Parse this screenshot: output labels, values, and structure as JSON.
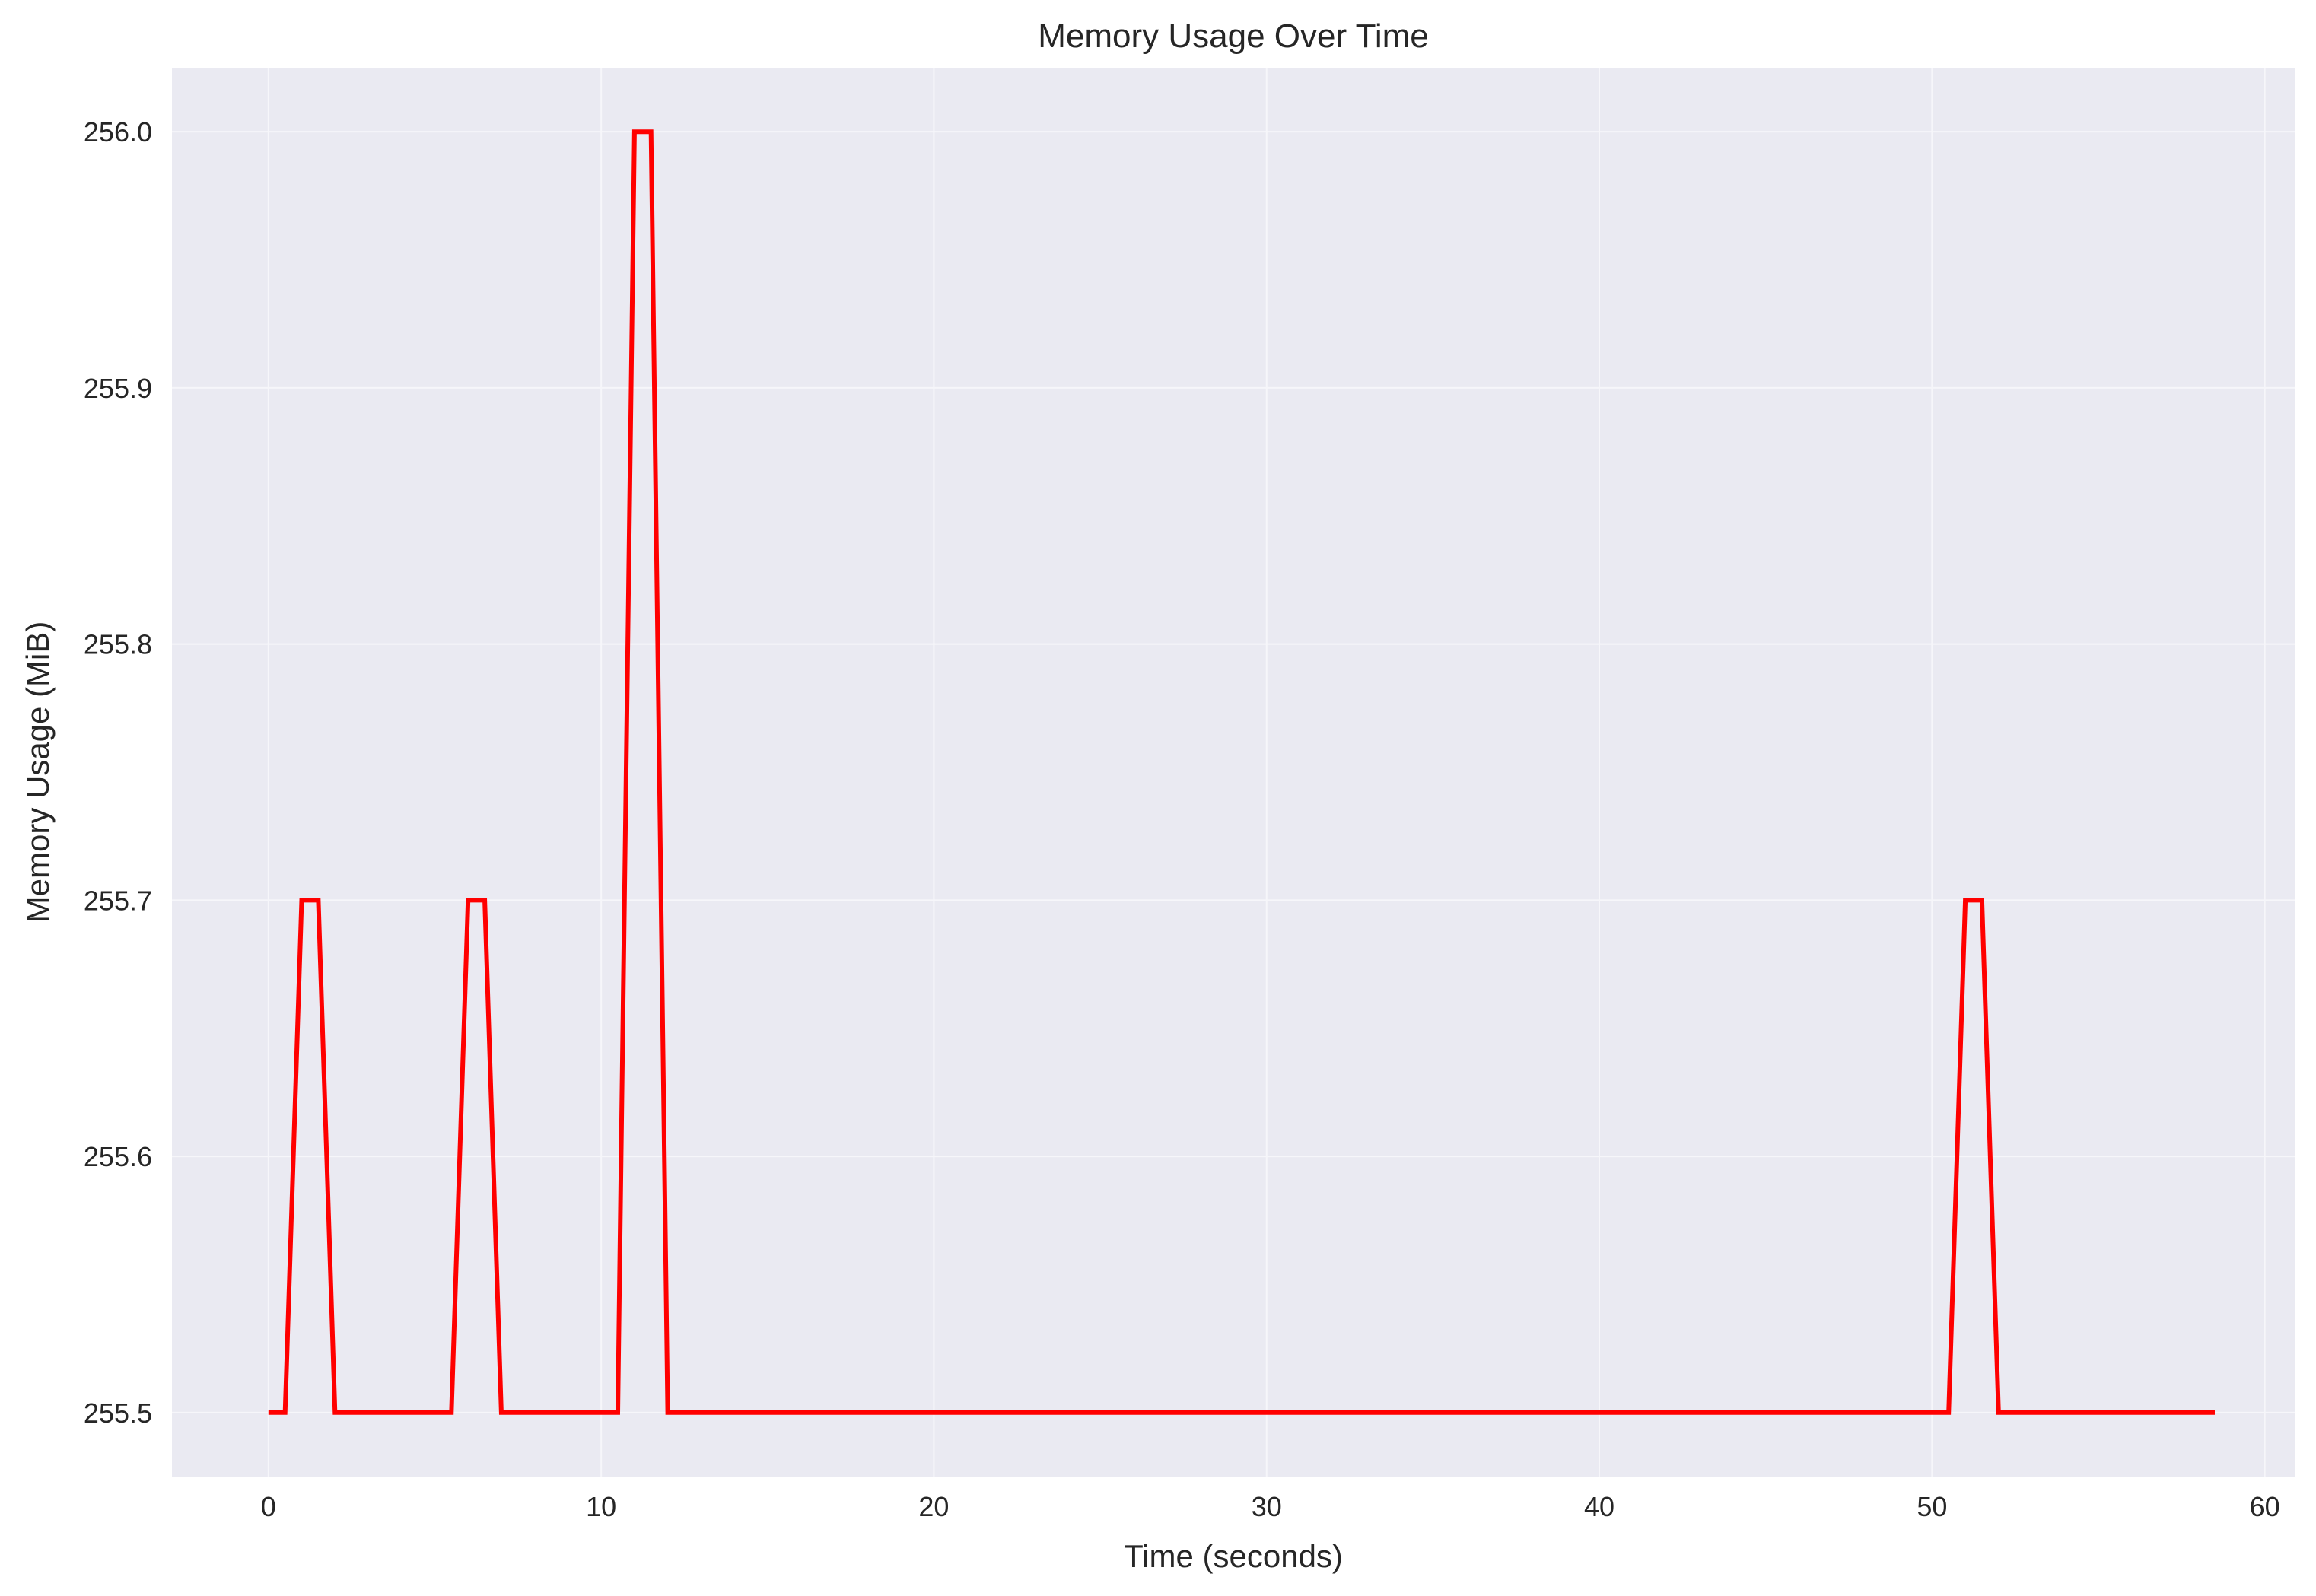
{
  "chart_data": {
    "type": "line",
    "title": "Memory Usage Over Time",
    "xlabel": "Time (seconds)",
    "ylabel": "Memory Usage (MiB)",
    "xlim": [
      -2.9,
      60.9
    ],
    "ylim": [
      255.475,
      256.025
    ],
    "x_ticks": [
      0,
      10,
      20,
      30,
      40,
      50,
      60
    ],
    "x_tick_labels": [
      "0",
      "10",
      "20",
      "30",
      "40",
      "50",
      "60"
    ],
    "y_ticks": [
      255.5,
      255.6,
      255.7,
      255.8,
      255.9,
      256.0
    ],
    "y_tick_labels": [
      "255.5",
      "255.6",
      "255.7",
      "255.8",
      "255.9",
      "256.0"
    ],
    "grid": true,
    "series": [
      {
        "color": "#ff0000",
        "x": [
          0.0,
          0.5,
          1.0,
          1.5,
          2.0,
          5.5,
          6.0,
          6.5,
          7.0,
          10.5,
          11.0,
          11.5,
          12.0,
          50.5,
          51.0,
          51.5,
          52.0,
          58.5
        ],
        "y": [
          255.5,
          255.5,
          255.7,
          255.7,
          255.5,
          255.5,
          255.7,
          255.7,
          255.5,
          255.5,
          256.0,
          256.0,
          255.5,
          255.5,
          255.7,
          255.7,
          255.5,
          255.5
        ]
      }
    ]
  }
}
